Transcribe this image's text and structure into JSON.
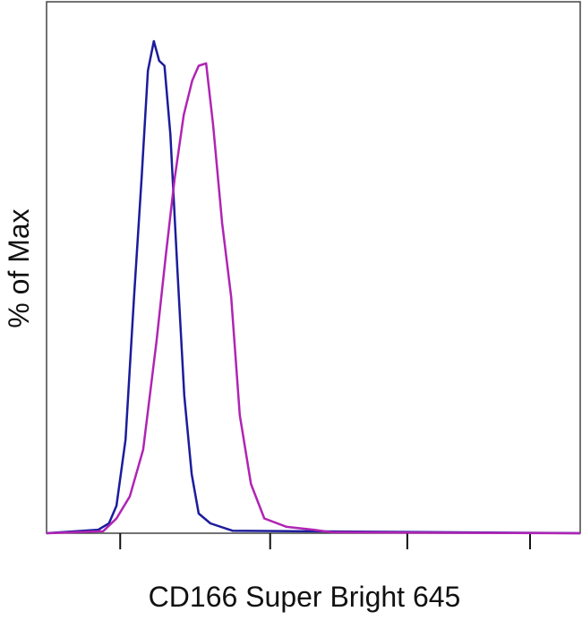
{
  "chart_data": {
    "type": "line",
    "x_label": "CD166 Super Bright 645",
    "y_label": "% of Max",
    "xlim": [
      0,
      100
    ],
    "ylim": [
      0,
      108
    ],
    "xticks": [
      13.8,
      41.9,
      67.6,
      90.6
    ],
    "series": [
      {
        "color": "#1c1c9c",
        "x": [
          0,
          9.7,
          11.7,
          13.1,
          14.8,
          16.4,
          17.8,
          19,
          20.1,
          21.1,
          22.1,
          23.2,
          24.5,
          25.8,
          27.2,
          28.5,
          30.7,
          34.9,
          100
        ],
        "values": [
          0,
          0.7,
          2,
          5.6,
          19,
          48,
          72,
          94,
          100,
          96,
          95,
          81,
          54,
          28,
          12,
          4,
          2,
          0.5,
          0
        ]
      },
      {
        "color": "#b024b4",
        "x": [
          0,
          10.6,
          13.1,
          15.6,
          18.1,
          20.6,
          22.3,
          24,
          25.7,
          27.3,
          28.5,
          29.9,
          31.2,
          32.9,
          34.6,
          36.2,
          38.3,
          40.8,
          45,
          50,
          53.4,
          100
        ],
        "values": [
          0,
          0.4,
          3,
          7.5,
          17,
          39,
          56,
          72,
          85,
          92,
          95,
          95.5,
          83,
          63,
          48,
          24,
          10,
          3,
          1.3,
          0.7,
          0.2,
          0
        ]
      }
    ]
  }
}
